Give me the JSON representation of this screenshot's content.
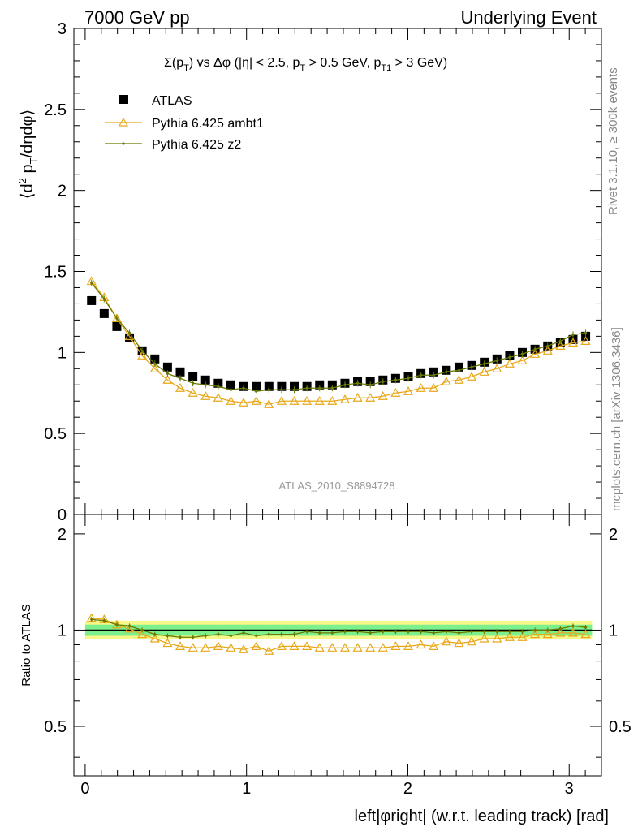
{
  "header": {
    "left": "7000 GeV pp",
    "right": "Underlying Event"
  },
  "side_labels": {
    "rivet": "Rivet 3.1.10, ≥ 300k events",
    "mcplots": "mcplots.cern.ch [arXiv:1306.3436]"
  },
  "analysis_id": "ATLAS_2010_S8894728",
  "chart_data": [
    {
      "type": "scatter",
      "title": "Σ(p_T) vs Δφ (|η| < 2.5, p_T > 0.5 GeV, p_T1 > 3 GeV)",
      "title_parts": {
        "sigma": "Σ(p",
        "sub_T": "T",
        "mid": ") vs Δφ (|η| < 2.5, p",
        "mid2": " > 0.5 GeV, p",
        "sub_T1": "T1",
        "end": " > 3 GeV)"
      },
      "ylabel": "⟨d² p_T/dηdφ⟩",
      "ylabel_parts": {
        "pre": "⟨d",
        "sup": "2",
        "mid": " p",
        "sub": "T",
        "post": "/dηdφ⟩"
      },
      "xlabel": "left|φright| (w.r.t. leading track) [rad]",
      "xlim": [
        -0.07,
        3.2
      ],
      "ylim": [
        0,
        3
      ],
      "y_ticks": [
        "0",
        "0.5",
        "1",
        "1.5",
        "2",
        "2.5",
        "3"
      ],
      "legend_position": "top-left",
      "x": [
        0.0393,
        0.1178,
        0.1963,
        0.2749,
        0.3534,
        0.432,
        0.5105,
        0.589,
        0.6676,
        0.7461,
        0.8247,
        0.9032,
        0.9817,
        1.0603,
        1.1388,
        1.2174,
        1.2959,
        1.3744,
        1.453,
        1.5315,
        1.6101,
        1.6886,
        1.7671,
        1.8457,
        1.9242,
        2.0028,
        2.0813,
        2.1598,
        2.2384,
        2.3169,
        2.3955,
        2.474,
        2.5525,
        2.6311,
        2.7096,
        2.7882,
        2.8667,
        2.9452,
        3.0238,
        3.1023
      ],
      "series": [
        {
          "name": "ATLAS",
          "color": "#000000",
          "marker": "square",
          "values": [
            1.32,
            1.24,
            1.16,
            1.09,
            1.01,
            0.96,
            0.91,
            0.88,
            0.85,
            0.83,
            0.81,
            0.8,
            0.79,
            0.79,
            0.79,
            0.79,
            0.79,
            0.79,
            0.8,
            0.8,
            0.81,
            0.82,
            0.82,
            0.83,
            0.84,
            0.85,
            0.87,
            0.88,
            0.89,
            0.91,
            0.92,
            0.94,
            0.96,
            0.98,
            1.0,
            1.02,
            1.04,
            1.06,
            1.08,
            1.1
          ]
        },
        {
          "name": "Pythia 6.425 ambt1",
          "color": "#e8a81a",
          "marker": "open-triangle",
          "values": [
            1.44,
            1.34,
            1.21,
            1.1,
            0.98,
            0.9,
            0.83,
            0.78,
            0.75,
            0.73,
            0.72,
            0.7,
            0.69,
            0.7,
            0.68,
            0.7,
            0.7,
            0.7,
            0.7,
            0.7,
            0.71,
            0.72,
            0.72,
            0.73,
            0.75,
            0.76,
            0.78,
            0.78,
            0.82,
            0.83,
            0.85,
            0.88,
            0.9,
            0.93,
            0.95,
            0.99,
            1.01,
            1.04,
            1.06,
            1.07
          ]
        },
        {
          "name": "Pythia 6.425 z2",
          "color": "#6b7a00",
          "marker": "dot",
          "values": [
            1.43,
            1.33,
            1.21,
            1.12,
            1.01,
            0.93,
            0.87,
            0.84,
            0.81,
            0.8,
            0.79,
            0.77,
            0.78,
            0.76,
            0.77,
            0.77,
            0.77,
            0.78,
            0.78,
            0.78,
            0.8,
            0.81,
            0.8,
            0.82,
            0.83,
            0.84,
            0.86,
            0.86,
            0.88,
            0.89,
            0.91,
            0.93,
            0.95,
            0.97,
            0.99,
            1.02,
            1.04,
            1.07,
            1.11,
            1.12
          ]
        }
      ]
    },
    {
      "type": "line",
      "ylabel": "Ratio to ATLAS",
      "xlim": [
        -0.07,
        3.2
      ],
      "ylim": [
        0.35,
        2.3
      ],
      "y_ticks_left": [
        "0.5",
        "1",
        "2"
      ],
      "y_ticks_right": [
        "0.5",
        "1",
        "2"
      ],
      "x_ticks": [
        "0",
        "1",
        "2",
        "3"
      ],
      "bands": {
        "inner": [
          0.96,
          1.04
        ],
        "outer": [
          0.94,
          1.07
        ],
        "inner_color": "#7cf08c",
        "outer_color": "#f7f78a"
      },
      "series": [
        {
          "name": "Pythia 6.425 ambt1",
          "color": "#e8a81a",
          "values": [
            1.09,
            1.08,
            1.04,
            1.01,
            0.97,
            0.94,
            0.91,
            0.89,
            0.88,
            0.88,
            0.89,
            0.88,
            0.87,
            0.89,
            0.86,
            0.89,
            0.89,
            0.89,
            0.88,
            0.88,
            0.88,
            0.88,
            0.88,
            0.88,
            0.89,
            0.89,
            0.9,
            0.89,
            0.92,
            0.91,
            0.92,
            0.94,
            0.94,
            0.95,
            0.95,
            0.97,
            0.97,
            0.98,
            0.98,
            0.97
          ]
        },
        {
          "name": "Pythia 6.425 z2",
          "color": "#6b7a00",
          "values": [
            1.08,
            1.07,
            1.04,
            1.03,
            1.0,
            0.97,
            0.96,
            0.95,
            0.95,
            0.96,
            0.97,
            0.96,
            0.98,
            0.96,
            0.97,
            0.97,
            0.97,
            0.99,
            0.98,
            0.98,
            0.99,
            0.99,
            0.98,
            0.99,
            0.99,
            0.99,
            0.99,
            0.98,
            0.99,
            0.98,
            0.99,
            0.99,
            0.99,
            0.99,
            0.99,
            1.0,
            1.0,
            1.01,
            1.03,
            1.02
          ]
        }
      ]
    }
  ]
}
